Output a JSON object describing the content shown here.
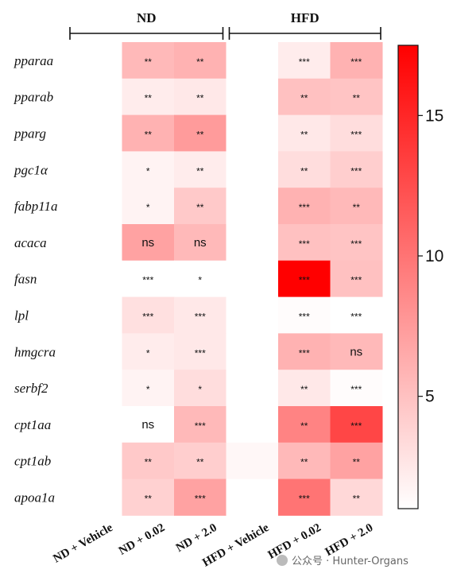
{
  "chart_data": {
    "type": "heatmap",
    "groups": [
      {
        "label": "ND",
        "columns": [
          0,
          1,
          2
        ]
      },
      {
        "label": "HFD",
        "columns": [
          3,
          4,
          5
        ]
      }
    ],
    "columns": [
      "ND + Vehicle",
      "ND + 0.02",
      "ND + 2.0",
      "HFD + Vehicle",
      "HFD + 0.02",
      "HFD + 2.0"
    ],
    "rows": [
      "pparaa",
      "pparab",
      "pparg",
      "pgc1α",
      "fabp11a",
      "acaca",
      "fasn",
      "lpl",
      "hmgcra",
      "serbf2",
      "cpt1aa",
      "cpt1ab",
      "apoa1a"
    ],
    "values": [
      [
        1.0,
        5.5,
        6.0,
        1.0,
        2.2,
        6.0
      ],
      [
        1.0,
        2.2,
        2.5,
        1.0,
        5.0,
        4.8
      ],
      [
        1.0,
        6.0,
        7.5,
        1.0,
        2.5,
        3.2
      ],
      [
        1.0,
        1.8,
        2.2,
        1.0,
        3.2,
        4.2
      ],
      [
        1.0,
        1.8,
        4.5,
        1.0,
        6.0,
        5.5
      ],
      [
        1.0,
        7.0,
        5.5,
        1.0,
        5.0,
        4.8
      ],
      [
        1.0,
        1.0,
        1.0,
        1.0,
        17.5,
        5.0
      ],
      [
        1.0,
        3.0,
        2.5,
        1.0,
        1.2,
        1.0
      ],
      [
        1.0,
        2.2,
        2.5,
        1.0,
        6.0,
        5.5
      ],
      [
        1.0,
        1.8,
        3.2,
        1.0,
        2.5,
        1.2
      ],
      [
        1.0,
        1.0,
        5.5,
        1.0,
        9.0,
        13.0
      ],
      [
        1.0,
        4.5,
        4.2,
        1.5,
        5.5,
        7.0
      ],
      [
        1.0,
        4.0,
        7.0,
        1.0,
        10.0,
        3.5
      ]
    ],
    "significance": [
      [
        "",
        "**",
        "**",
        "",
        "***",
        "***"
      ],
      [
        "",
        "**",
        "**",
        "",
        "**",
        "**"
      ],
      [
        "",
        "**",
        "**",
        "",
        "**",
        "***"
      ],
      [
        "",
        "*",
        "**",
        "",
        "**",
        "***"
      ],
      [
        "",
        "*",
        "**",
        "",
        "***",
        "**"
      ],
      [
        "",
        "ns",
        "ns",
        "",
        "***",
        "***"
      ],
      [
        "",
        "***",
        "*",
        "",
        "***",
        "***"
      ],
      [
        "",
        "***",
        "***",
        "",
        "***",
        "***"
      ],
      [
        "",
        "*",
        "***",
        "",
        "***",
        "ns"
      ],
      [
        "",
        "*",
        "*",
        "",
        "**",
        "***"
      ],
      [
        "",
        "ns",
        "***",
        "",
        "**",
        "***"
      ],
      [
        "",
        "**",
        "**",
        "",
        "**",
        "**"
      ],
      [
        "",
        "**",
        "***",
        "",
        "***",
        "**"
      ]
    ],
    "colorbar": {
      "min": 1,
      "max": 17.5,
      "ticks": [
        5,
        10,
        15
      ],
      "color_low": "#ffffff",
      "color_high": "#ff0000"
    }
  },
  "watermark": "公众号 · Hunter-Organs"
}
